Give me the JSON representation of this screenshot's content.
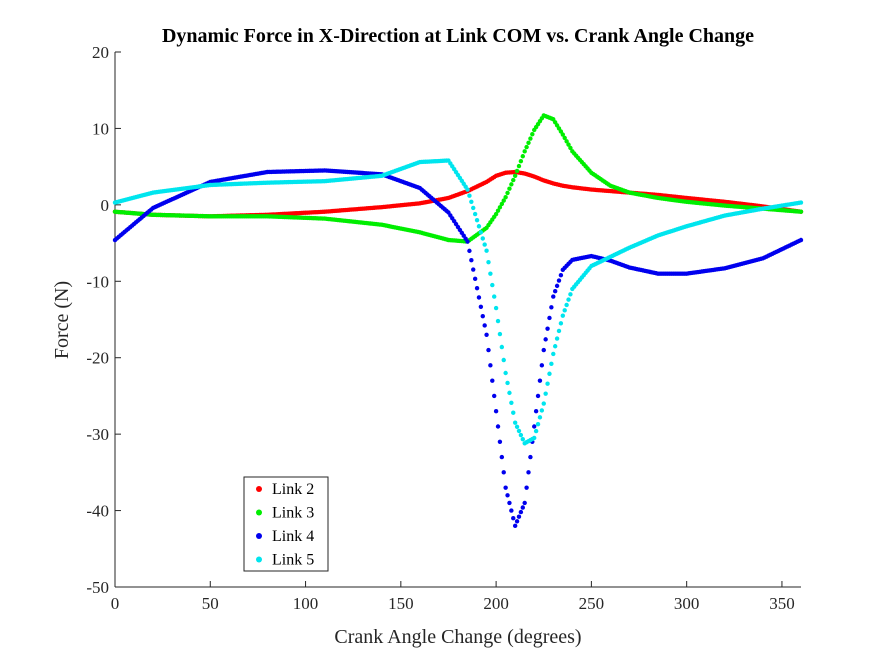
{
  "chart_data": {
    "type": "scatter",
    "title": "Dynamic Force in X-Direction at Link COM vs. Crank Angle Change",
    "xlabel": "Crank Angle Change (degrees)",
    "ylabel": "Force (N)",
    "xlim": [
      0,
      360
    ],
    "ylim": [
      -50,
      20
    ],
    "xticks": [
      0,
      50,
      100,
      150,
      200,
      250,
      300,
      350
    ],
    "yticks": [
      20,
      10,
      0,
      -10,
      -20,
      -30,
      -40,
      -50
    ],
    "grid": false,
    "legend_position": "bottom-left",
    "x": [
      0,
      20,
      50,
      80,
      110,
      140,
      160,
      175,
      185,
      195,
      200,
      205,
      210,
      215,
      220,
      225,
      230,
      235,
      240,
      250,
      260,
      270,
      285,
      300,
      320,
      340,
      360
    ],
    "series": [
      {
        "name": "Link 2",
        "color": "#ff0000",
        "values": [
          -0.9,
          -1.3,
          -1.5,
          -1.3,
          -0.9,
          -0.3,
          0.2,
          0.9,
          1.8,
          3.0,
          3.8,
          4.2,
          4.3,
          4.1,
          3.7,
          3.2,
          2.8,
          2.5,
          2.3,
          2.0,
          1.8,
          1.6,
          1.3,
          0.9,
          0.4,
          -0.2,
          -0.9
        ]
      },
      {
        "name": "Link 3",
        "color": "#00ee00",
        "values": [
          -0.9,
          -1.3,
          -1.5,
          -1.5,
          -1.8,
          -2.6,
          -3.6,
          -4.6,
          -4.8,
          -3.0,
          -1.2,
          1.0,
          3.8,
          7.0,
          9.8,
          11.7,
          11.2,
          9.2,
          7.0,
          4.2,
          2.5,
          1.6,
          0.9,
          0.4,
          -0.1,
          -0.5,
          -0.9
        ]
      },
      {
        "name": "Link 4",
        "color": "#0000ee",
        "values": [
          -4.6,
          -0.4,
          3.0,
          4.3,
          4.5,
          4.0,
          2.2,
          -1.0,
          -4.8,
          -17.0,
          -27.0,
          -37.0,
          -42.0,
          -39.0,
          -29.0,
          -19.0,
          -12.0,
          -8.5,
          -7.2,
          -6.7,
          -7.3,
          -8.2,
          -9.0,
          -9.0,
          -8.3,
          -7.0,
          -4.6
        ]
      },
      {
        "name": "Link 5",
        "color": "#00e5ee",
        "values": [
          0.3,
          1.6,
          2.6,
          2.9,
          3.1,
          3.8,
          5.6,
          5.8,
          2.0,
          -6.0,
          -13.5,
          -22.0,
          -28.5,
          -31.2,
          -30.5,
          -26.0,
          -19.5,
          -14.5,
          -11.0,
          -8.0,
          -6.8,
          -5.6,
          -4.0,
          -2.8,
          -1.4,
          -0.5,
          0.3
        ]
      }
    ]
  }
}
